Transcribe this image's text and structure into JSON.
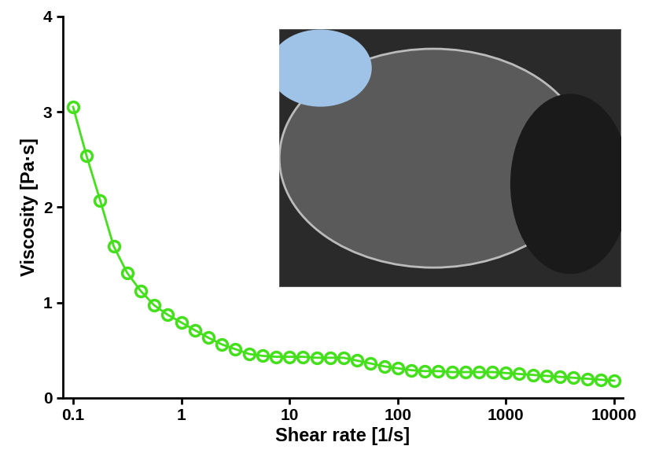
{
  "chart_data": {
    "type": "line",
    "x_label": "Shear rate [1/s]",
    "y_label": "Viscosity [Pa·s]",
    "log": "x",
    "grid": false,
    "series": [
      {
        "color": "#44e01c",
        "marker": "o",
        "line_style": "solid",
        "x": [
          0.1,
          0.133,
          0.178,
          0.237,
          0.316,
          0.422,
          0.562,
          0.75,
          1,
          1.33,
          1.78,
          2.37,
          3.16,
          4.22,
          5.62,
          7.5,
          10,
          13.3,
          17.8,
          23.7,
          31.6,
          42.2,
          56.2,
          75,
          100,
          133,
          178,
          237,
          316,
          422,
          562,
          750,
          1000,
          1330,
          1780,
          2370,
          3160,
          4220,
          5620,
          7500,
          10000
        ],
        "values": [
          3.05,
          2.54,
          2.07,
          1.59,
          1.31,
          1.12,
          0.97,
          0.87,
          0.79,
          0.71,
          0.63,
          0.56,
          0.51,
          0.46,
          0.44,
          0.43,
          0.43,
          0.43,
          0.42,
          0.42,
          0.42,
          0.39,
          0.36,
          0.33,
          0.31,
          0.29,
          0.28,
          0.28,
          0.27,
          0.27,
          0.27,
          0.27,
          0.26,
          0.25,
          0.24,
          0.23,
          0.22,
          0.21,
          0.2,
          0.19,
          0.18
        ]
      }
    ],
    "xlim": [
      0.08,
      12000
    ],
    "xticks": [
      0.1,
      1,
      10,
      100,
      1000,
      10000
    ],
    "ylim": [
      0,
      4
    ],
    "yticks": [
      0,
      1,
      2,
      3,
      4
    ]
  }
}
